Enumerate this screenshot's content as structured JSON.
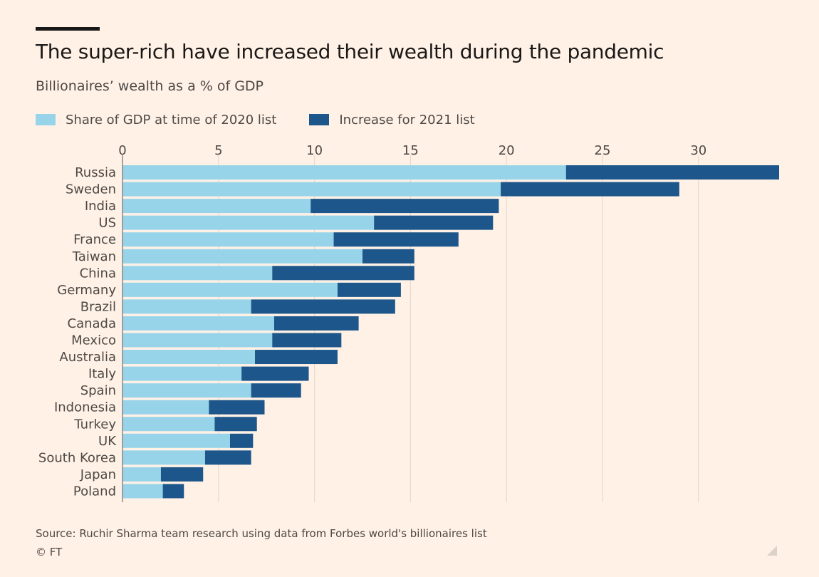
{
  "header": {
    "title": "The super-rich have increased their wealth during the pandemic",
    "subtitle": "Billionaires’ wealth as a % of GDP"
  },
  "legend": {
    "items": [
      {
        "label": "Share of GDP at time of 2020 list",
        "color": "#97d4ea"
      },
      {
        "label": "Increase for 2021 list",
        "color": "#1c568a"
      }
    ]
  },
  "footer": {
    "source": "Source: Ruchir Sharma team research using data from Forbes world's billionaires list",
    "copyright": "© FT"
  },
  "chart_data": {
    "type": "bar",
    "orientation": "horizontal",
    "stacked": true,
    "categories": [
      "Russia",
      "Sweden",
      "India",
      "US",
      "France",
      "Taiwan",
      "China",
      "Germany",
      "Brazil",
      "Canada",
      "Mexico",
      "Australia",
      "Italy",
      "Spain",
      "Indonesia",
      "Turkey",
      "UK",
      "South Korea",
      "Japan",
      "Poland"
    ],
    "series": [
      {
        "name": "Share of GDP at time of 2020 list",
        "color": "#97d4ea",
        "values": [
          23.1,
          19.7,
          9.8,
          13.1,
          11.0,
          12.5,
          7.8,
          11.2,
          6.7,
          7.9,
          7.8,
          6.9,
          6.2,
          6.7,
          4.5,
          4.8,
          5.6,
          4.3,
          2.0,
          2.1
        ]
      },
      {
        "name": "Increase for 2021 list",
        "color": "#1c568a",
        "values": [
          11.1,
          9.3,
          9.8,
          6.2,
          6.5,
          2.7,
          7.4,
          3.3,
          7.5,
          4.4,
          3.6,
          4.3,
          3.5,
          2.6,
          2.9,
          2.2,
          1.2,
          2.4,
          2.2,
          1.1
        ]
      }
    ],
    "xlim": [
      0,
      34.2
    ],
    "xticks": [
      0,
      5,
      10,
      15,
      20,
      25,
      30
    ],
    "grid": true,
    "xaxis_position": "top",
    "legend_position": "top-left"
  }
}
